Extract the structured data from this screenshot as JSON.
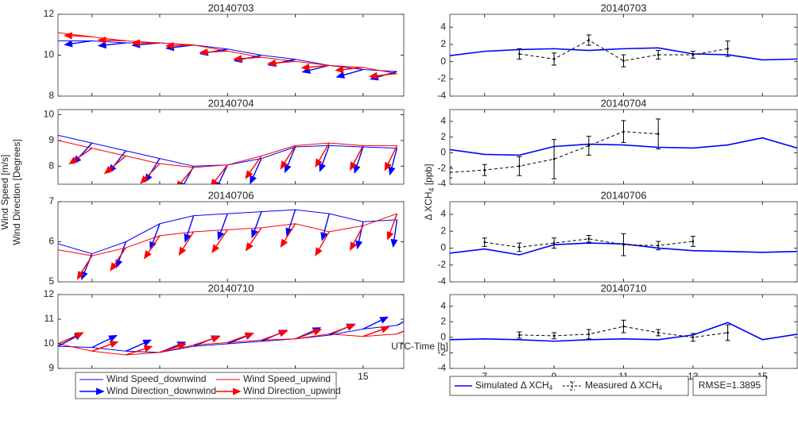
{
  "chart_data": [
    {
      "type": "quiver-line",
      "title": "20140703",
      "x": [
        6,
        7,
        8,
        9,
        10,
        11,
        12,
        13,
        14,
        15,
        16
      ],
      "xlim": [
        6,
        16.2
      ],
      "xticks": [
        7,
        9,
        11,
        13,
        15
      ],
      "ylim": [
        8,
        12
      ],
      "yticks": [
        8,
        10,
        12
      ],
      "series": [
        {
          "kind": "speed",
          "color": "#0000ff",
          "values": [
            10.7,
            10.7,
            10.6,
            10.6,
            10.5,
            10.3,
            10.0,
            9.8,
            9.5,
            9.3,
            9.2
          ]
        },
        {
          "kind": "speed",
          "color": "#ff0000",
          "values": [
            11.1,
            10.9,
            10.7,
            10.6,
            10.5,
            10.2,
            9.9,
            9.7,
            9.5,
            9.4,
            9.1
          ]
        },
        {
          "kind": "direction",
          "color": "#0000ff",
          "values": [
            190,
            188,
            186,
            185,
            187,
            190,
            192,
            192,
            194,
            196,
            196
          ]
        },
        {
          "kind": "direction",
          "color": "#ff0000",
          "values": [
            176,
            177,
            178,
            180,
            182,
            183,
            184,
            185,
            185,
            186,
            186
          ]
        }
      ]
    },
    {
      "type": "quiver-line",
      "title": "20140704",
      "x": [
        6,
        7,
        8,
        9,
        10,
        11,
        12,
        13,
        14,
        15,
        16
      ],
      "xlim": [
        6,
        16.2
      ],
      "xticks": [
        7,
        9,
        11,
        13,
        15
      ],
      "ylim": [
        7.3,
        10.2
      ],
      "yticks": [
        8,
        9,
        10
      ],
      "series": [
        {
          "kind": "speed",
          "color": "#0000ff",
          "values": [
            9.2,
            8.9,
            8.6,
            8.3,
            8.0,
            8.05,
            8.3,
            8.75,
            8.8,
            8.75,
            8.7
          ]
        },
        {
          "kind": "speed",
          "color": "#ff0000",
          "values": [
            9.0,
            8.7,
            8.4,
            8.1,
            7.95,
            8.05,
            8.4,
            8.8,
            8.9,
            8.8,
            8.8
          ]
        },
        {
          "kind": "direction",
          "color": "#0000ff",
          "values": [
            225,
            228,
            232,
            238,
            242,
            245,
            246,
            248,
            250,
            252,
            255
          ]
        },
        {
          "kind": "direction",
          "color": "#ff0000",
          "values": [
            212,
            215,
            220,
            226,
            230,
            232,
            235,
            238,
            240,
            242,
            244
          ]
        }
      ]
    },
    {
      "type": "quiver-line",
      "title": "20140706",
      "x": [
        6,
        7,
        8,
        9,
        10,
        11,
        12,
        13,
        14,
        15,
        16
      ],
      "xlim": [
        6,
        16.2
      ],
      "xticks": [
        7,
        9,
        11,
        13,
        15
      ],
      "ylim": [
        5,
        7
      ],
      "yticks": [
        5,
        6,
        7
      ],
      "series": [
        {
          "kind": "speed",
          "color": "#0000ff",
          "values": [
            5.95,
            5.7,
            6.0,
            6.45,
            6.65,
            6.7,
            6.75,
            6.8,
            6.7,
            6.5,
            6.55
          ]
        },
        {
          "kind": "speed",
          "color": "#ff0000",
          "values": [
            5.8,
            5.65,
            5.85,
            6.15,
            6.25,
            6.3,
            6.35,
            6.45,
            6.25,
            6.4,
            6.7
          ]
        },
        {
          "kind": "direction",
          "color": "#0000ff",
          "values": [
            245,
            248,
            250,
            250,
            252,
            250,
            250,
            252,
            255,
            258,
            262
          ]
        },
        {
          "kind": "direction",
          "color": "#ff0000",
          "values": [
            235,
            238,
            236,
            236,
            238,
            236,
            236,
            238,
            240,
            242,
            250
          ]
        }
      ]
    },
    {
      "type": "quiver-line",
      "title": "20140710",
      "x": [
        6,
        7,
        8,
        9,
        10,
        11,
        12,
        13,
        14,
        15,
        16
      ],
      "xlim": [
        6,
        16.2
      ],
      "xticks": [
        7,
        9,
        11,
        13,
        15
      ],
      "ylim": [
        9,
        12
      ],
      "yticks": [
        9,
        10,
        11,
        12
      ],
      "series": [
        {
          "kind": "speed",
          "color": "#0000ff",
          "values": [
            9.9,
            9.85,
            9.7,
            9.65,
            9.9,
            10.0,
            10.1,
            10.2,
            10.35,
            10.6,
            10.75
          ]
        },
        {
          "kind": "speed",
          "color": "#ff0000",
          "values": [
            10.0,
            9.7,
            9.55,
            9.65,
            9.95,
            10.05,
            10.15,
            10.2,
            10.4,
            10.3,
            10.4
          ]
        },
        {
          "kind": "direction",
          "color": "#0000ff",
          "values": [
            28,
            26,
            24,
            22,
            22,
            22,
            24,
            24,
            24,
            26,
            28
          ]
        },
        {
          "kind": "direction",
          "color": "#ff0000",
          "values": [
            24,
            20,
            18,
            18,
            18,
            20,
            20,
            20,
            20,
            20,
            22
          ]
        }
      ]
    },
    {
      "type": "errorbar-line",
      "title": "20140703",
      "x": [
        6,
        7,
        8,
        9,
        10,
        11,
        12,
        13,
        14,
        15,
        16
      ],
      "xlim": [
        6,
        16
      ],
      "xticks": [
        7,
        9,
        11,
        13,
        15
      ],
      "ylim": [
        -4,
        5.5
      ],
      "yticks": [
        -4,
        -2,
        0,
        2,
        4
      ],
      "simulated": {
        "color": "#0000ff",
        "values": [
          0.7,
          1.2,
          1.4,
          1.5,
          1.3,
          1.5,
          1.6,
          0.9,
          0.8,
          0.2,
          0.3
        ]
      },
      "measured": {
        "color": "#000000",
        "x": [
          8,
          9,
          10,
          11,
          12,
          13,
          14
        ],
        "values": [
          0.9,
          0.3,
          2.5,
          0.1,
          0.8,
          0.8,
          1.5
        ],
        "errors": [
          0.6,
          0.7,
          0.6,
          0.7,
          0.5,
          0.4,
          0.9
        ]
      }
    },
    {
      "type": "errorbar-line",
      "title": "20140704",
      "x": [
        6,
        7,
        8,
        9,
        10,
        11,
        12,
        13,
        14,
        15,
        16
      ],
      "xlim": [
        6,
        16
      ],
      "xticks": [
        7,
        9,
        11,
        13,
        15
      ],
      "ylim": [
        -4,
        5.5
      ],
      "yticks": [
        -4,
        -2,
        0,
        2,
        4
      ],
      "simulated": {
        "color": "#0000ff",
        "values": [
          0.4,
          -0.2,
          -0.3,
          0.8,
          1.1,
          1.0,
          0.7,
          0.6,
          1.0,
          1.9,
          0.6
        ]
      },
      "measured": {
        "color": "#000000",
        "x": [
          6,
          7,
          8,
          9,
          10,
          11,
          12
        ],
        "values": [
          -2.5,
          -2.2,
          -1.7,
          -0.8,
          0.9,
          2.7,
          2.4
        ],
        "errors": [
          0.7,
          0.7,
          1.2,
          2.5,
          1.2,
          1.4,
          1.9
        ]
      }
    },
    {
      "type": "errorbar-line",
      "title": "20140706",
      "x": [
        6,
        7,
        8,
        9,
        10,
        11,
        12,
        13,
        14,
        15,
        16
      ],
      "xlim": [
        6,
        16
      ],
      "xticks": [
        7,
        9,
        11,
        13,
        15
      ],
      "ylim": [
        -4,
        5.5
      ],
      "yticks": [
        -4,
        -2,
        0,
        2,
        4
      ],
      "simulated": {
        "color": "#0000ff",
        "values": [
          -0.6,
          -0.1,
          -0.8,
          0.4,
          0.6,
          0.5,
          0,
          -0.3,
          -0.4,
          -0.5,
          -0.4
        ]
      },
      "measured": {
        "color": "#000000",
        "x": [
          7,
          8,
          9,
          10,
          11,
          12,
          13
        ],
        "values": [
          0.7,
          0.1,
          0.6,
          1.1,
          0.4,
          0.3,
          0.8
        ],
        "errors": [
          0.5,
          0.5,
          0.6,
          0.4,
          1.3,
          0.5,
          0.6
        ]
      }
    },
    {
      "type": "errorbar-line",
      "title": "20140710",
      "x": [
        6,
        7,
        8,
        9,
        10,
        11,
        12,
        13,
        14,
        15,
        16
      ],
      "xlim": [
        6,
        16
      ],
      "xticks": [
        7,
        9,
        11,
        13,
        15
      ],
      "ylim": [
        -4,
        5.5
      ],
      "yticks": [
        -4,
        -2,
        0,
        2,
        4
      ],
      "simulated": {
        "color": "#0000ff",
        "values": [
          -0.3,
          -0.2,
          -0.3,
          -0.5,
          -0.3,
          -0.2,
          -0.3,
          0.3,
          1.9,
          -0.3,
          0.4
        ]
      },
      "measured": {
        "color": "#000000",
        "x": [
          8,
          9,
          10,
          11,
          12,
          13,
          14
        ],
        "values": [
          0.3,
          0.2,
          0.4,
          1.4,
          0.6,
          0,
          0.6
        ],
        "errors": [
          0.4,
          0.4,
          0.6,
          0.8,
          0.4,
          0.5,
          1.0
        ]
      }
    }
  ],
  "figure": {
    "ylabel_left": [
      "Wind Speed [m/s]",
      "Wind Direction [Degrees]"
    ],
    "ylabel_right": {
      "text": "Δ XCH",
      "sub": "4",
      "rest": " [ppb]"
    },
    "xlabel": "UTC-Time [h]",
    "legend_left": [
      {
        "name": "Wind Speed_downwind",
        "color": "#0000ff",
        "kind": "line"
      },
      {
        "name": "Wind Speed_upwind",
        "color": "#ff0000",
        "kind": "line"
      },
      {
        "name": "Wind Direction_downwind",
        "color": "#0000ff",
        "kind": "arrow"
      },
      {
        "name": "Wind Direction_upwind",
        "color": "#ff0000",
        "kind": "arrow"
      }
    ],
    "legend_right": [
      {
        "text": "Simulated Δ XCH",
        "sub": "4",
        "color": "#0000ff",
        "kind": "line"
      },
      {
        "text": "Measured Δ XCH",
        "sub": "4",
        "color": "#000000",
        "kind": "errorbar"
      }
    ],
    "rmse": "RMSE=1.3895"
  }
}
